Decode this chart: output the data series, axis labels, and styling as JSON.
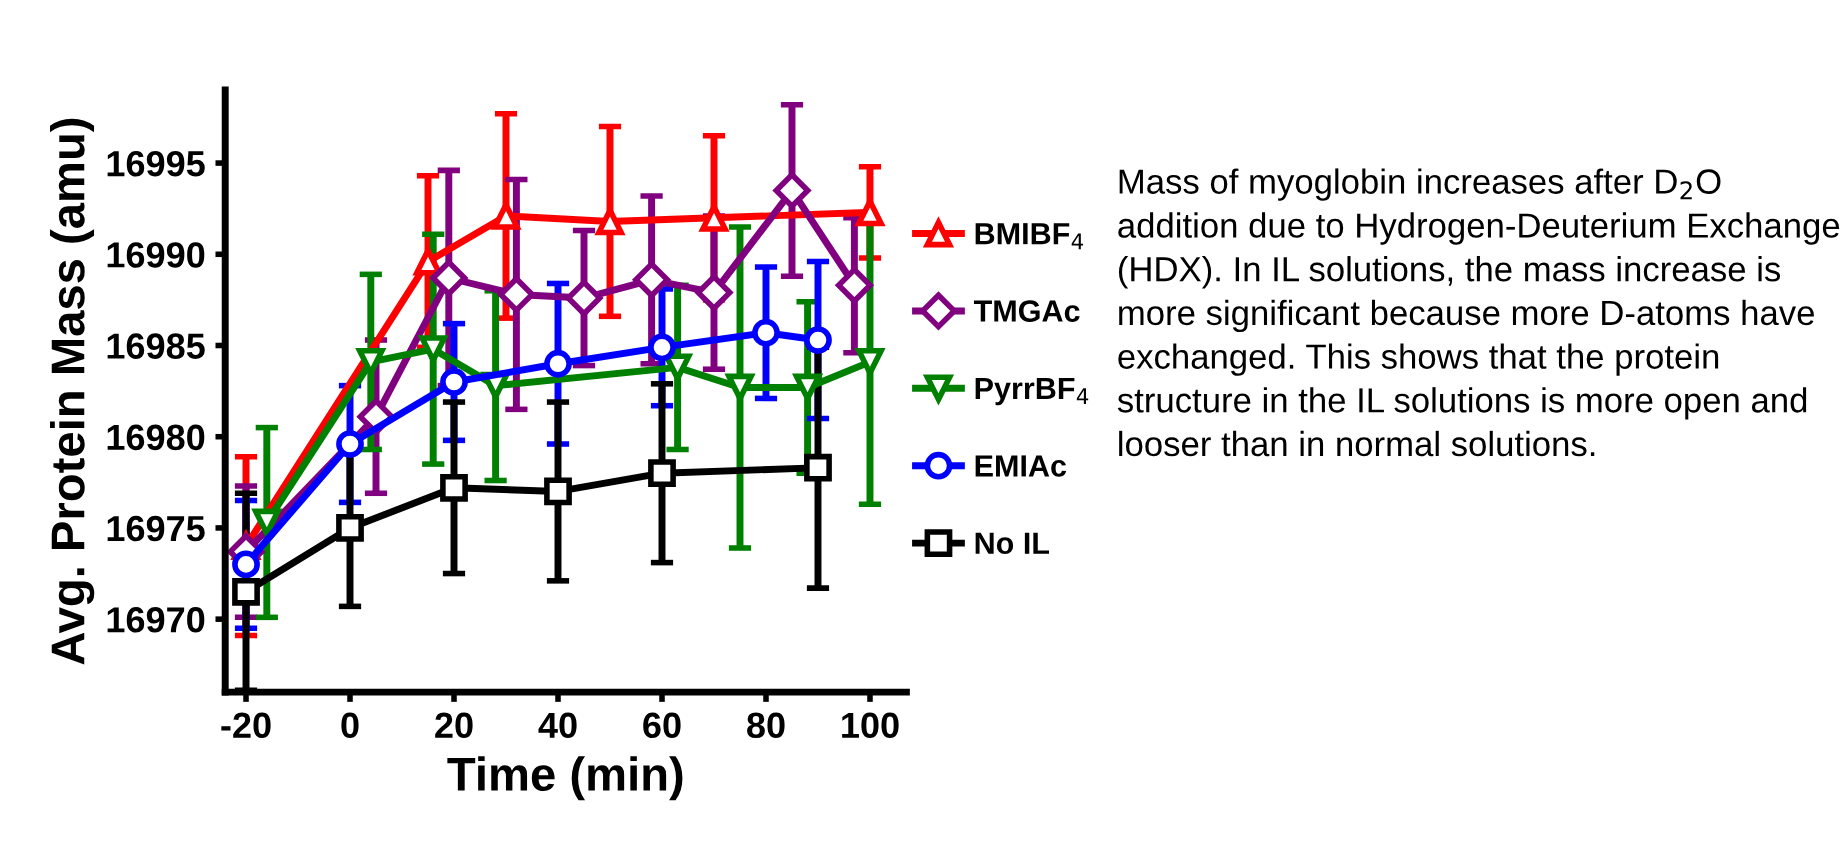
{
  "chart_data": {
    "type": "line",
    "xlabel": "Time (min)",
    "ylabel": "Avg. Protein Mass (amu)",
    "xlim": [
      -24,
      107
    ],
    "ylim": [
      16966,
      16999
    ],
    "xticks": [
      -20,
      0,
      20,
      40,
      60,
      80,
      100
    ],
    "yticks": [
      16970,
      16975,
      16980,
      16985,
      16990,
      16995
    ],
    "grid": false,
    "legend": "right",
    "line_style": "solid",
    "series": [
      {
        "name": "BMIBF$_{4}$",
        "color": "#ff0000",
        "marker": "triangle",
        "x": [
          -20,
          15,
          30,
          50,
          70,
          100
        ],
        "values": [
          16974,
          16989.6,
          16992.1,
          16991.8,
          16992,
          16992.3
        ],
        "errors": [
          4.9,
          4.7,
          5.6,
          5.2,
          4.5,
          2.5
        ]
      },
      {
        "name": "TMGAc",
        "color": "#800080",
        "marker": "diamond",
        "x": [
          -20,
          5,
          19,
          32,
          45,
          58,
          70,
          85,
          97
        ],
        "values": [
          16973.7,
          16981.1,
          16988.7,
          16987.8,
          16987.6,
          16988.6,
          16987.9,
          16993.5,
          16988.3
        ],
        "errors": [
          3.6,
          4.2,
          5.9,
          6.3,
          3.7,
          4.6,
          4.2,
          4.7,
          3.7
        ]
      },
      {
        "name": "PyrrBF$_{4}$",
        "color": "#008000",
        "marker": "triangle_down",
        "x": [
          -16,
          4,
          16,
          28,
          63,
          75,
          88,
          100
        ],
        "values": [
          16975.3,
          16984.1,
          16984.8,
          16982.8,
          16983.8,
          16982.7,
          16982.7,
          16984.1
        ],
        "errors": [
          5.2,
          4.8,
          6.3,
          5.2,
          4.5,
          8.8,
          4.7,
          7.8
        ]
      },
      {
        "name": "EMIAc",
        "color": "#0000ff",
        "marker": "circle",
        "x": [
          -20,
          0,
          20,
          40,
          60,
          80,
          90
        ],
        "values": [
          16973,
          16979.6,
          16983,
          16984,
          16984.9,
          16985.7,
          16985.3
        ],
        "errors": [
          3.5,
          3.2,
          3.2,
          4.4,
          3.2,
          3.6,
          4.3
        ]
      },
      {
        "name": "No IL",
        "color": "#000000",
        "marker": "square",
        "x": [
          -20,
          0,
          20,
          40,
          60,
          90
        ],
        "values": [
          16971.5,
          16975,
          16977.2,
          16977,
          16978,
          16978.3
        ],
        "errors": [
          5.4,
          4.3,
          4.7,
          4.9,
          4.9,
          6.6
        ]
      }
    ],
    "annotations": [
      "Mass of myoglobin increases after D$_{2}$O addition due to Hydrogen-Deuterium Exchange (HDX). In IL solutions, the mass increase is more significant because more D-atoms have exchanged. This shows that the protein structure in the IL solutions is more open and looser than in normal solutions."
    ]
  }
}
